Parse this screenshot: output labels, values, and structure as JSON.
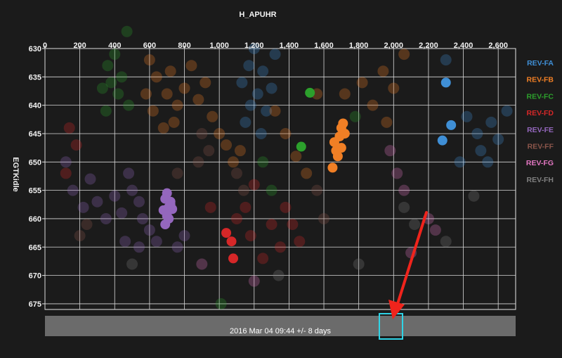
{
  "chart_data": {
    "type": "scatter",
    "x_title": "H_APUHR",
    "y_title": "EGTKidle",
    "x_ticks": [
      "0",
      "200",
      "400",
      "600",
      "800",
      "1,000",
      "1,200",
      "1,400",
      "1,600",
      "1,800",
      "2,000",
      "2,200",
      "2,400",
      "2,600"
    ],
    "y_ticks": [
      "630",
      "635",
      "640",
      "645",
      "650",
      "655",
      "660",
      "665",
      "670",
      "675"
    ],
    "xlim": [
      0,
      2700
    ],
    "ylim": [
      630,
      676
    ],
    "y_inverted": true,
    "grid": true,
    "legend_position": "right",
    "series": [
      {
        "name": "REV-FA",
        "color": "#3f8fd6",
        "highlighted": [
          [
            2300,
            636.0
          ],
          [
            2330,
            643.5
          ],
          [
            2280,
            646.2
          ]
        ],
        "background": [
          [
            1130,
            636
          ],
          [
            1170,
            633
          ],
          [
            1200,
            630
          ],
          [
            1220,
            638
          ],
          [
            1250,
            634
          ],
          [
            1270,
            641
          ],
          [
            1150,
            643
          ],
          [
            1300,
            637
          ],
          [
            1320,
            631
          ],
          [
            1240,
            645
          ],
          [
            1180,
            640
          ],
          [
            2420,
            642
          ],
          [
            2480,
            645
          ],
          [
            2500,
            648
          ],
          [
            2560,
            643
          ],
          [
            2600,
            646
          ],
          [
            2650,
            641
          ],
          [
            2380,
            650
          ],
          [
            2540,
            650
          ],
          [
            2300,
            632
          ]
        ]
      },
      {
        "name": "REV-FB",
        "color": "#f07f25",
        "highlighted": [
          [
            1710,
            643.2
          ],
          [
            1700,
            644.0
          ],
          [
            1690,
            645.5
          ],
          [
            1720,
            645.0
          ],
          [
            1660,
            646.5
          ],
          [
            1700,
            647.5
          ],
          [
            1670,
            648.0
          ],
          [
            1680,
            649.0
          ],
          [
            1650,
            651.0
          ]
        ],
        "background": [
          [
            600,
            632
          ],
          [
            640,
            635
          ],
          [
            700,
            638
          ],
          [
            720,
            634
          ],
          [
            760,
            640
          ],
          [
            800,
            637
          ],
          [
            840,
            633
          ],
          [
            880,
            639
          ],
          [
            920,
            636
          ],
          [
            960,
            642
          ],
          [
            620,
            641
          ],
          [
            680,
            644
          ],
          [
            740,
            643
          ],
          [
            580,
            638
          ],
          [
            1000,
            645
          ],
          [
            1040,
            647
          ],
          [
            1080,
            650
          ],
          [
            1120,
            648
          ],
          [
            1320,
            641
          ],
          [
            1380,
            645
          ],
          [
            1440,
            649
          ],
          [
            1500,
            652
          ],
          [
            1560,
            638
          ],
          [
            1820,
            636
          ],
          [
            1880,
            640
          ],
          [
            1940,
            634
          ],
          [
            2000,
            637
          ],
          [
            2060,
            631
          ],
          [
            1960,
            643
          ],
          [
            1720,
            638
          ]
        ]
      },
      {
        "name": "REV-FC",
        "color": "#2ca02c",
        "highlighted": [
          [
            1520,
            637.8
          ],
          [
            1470,
            647.3
          ]
        ],
        "background": [
          [
            360,
            633
          ],
          [
            380,
            636
          ],
          [
            400,
            631
          ],
          [
            420,
            638
          ],
          [
            350,
            641
          ],
          [
            440,
            635
          ],
          [
            470,
            627
          ],
          [
            480,
            640
          ],
          [
            330,
            637
          ],
          [
            1780,
            642
          ],
          [
            1250,
            650
          ],
          [
            1300,
            655
          ],
          [
            1010,
            675
          ]
        ]
      },
      {
        "name": "REV-FD",
        "color": "#d62728",
        "highlighted": [
          [
            1040,
            662.5
          ],
          [
            1070,
            664.0
          ],
          [
            1080,
            667.0
          ]
        ],
        "background": [
          [
            1100,
            660
          ],
          [
            1150,
            658
          ],
          [
            1180,
            663
          ],
          [
            1250,
            667
          ],
          [
            1300,
            661
          ],
          [
            1380,
            658
          ],
          [
            1420,
            661
          ],
          [
            1460,
            664
          ],
          [
            1350,
            665
          ],
          [
            950,
            658
          ],
          [
            180,
            647
          ],
          [
            140,
            644
          ],
          [
            120,
            652
          ],
          [
            1200,
            654
          ]
        ]
      },
      {
        "name": "REV-FE",
        "color": "#9467bd",
        "highlighted": [
          [
            700,
            655.5
          ],
          [
            690,
            656.5
          ],
          [
            720,
            657.0
          ],
          [
            710,
            658.0
          ],
          [
            730,
            658.3
          ],
          [
            680,
            658.5
          ],
          [
            700,
            659.5
          ],
          [
            710,
            660.0
          ],
          [
            690,
            661.0
          ],
          [
            720,
            657.5
          ]
        ],
        "background": [
          [
            500,
            655
          ],
          [
            540,
            657
          ],
          [
            480,
            652
          ],
          [
            440,
            659
          ],
          [
            400,
            656
          ],
          [
            350,
            660
          ],
          [
            300,
            657
          ],
          [
            260,
            653
          ],
          [
            560,
            660
          ],
          [
            600,
            662
          ],
          [
            640,
            664
          ],
          [
            460,
            664
          ],
          [
            760,
            665
          ],
          [
            800,
            663
          ],
          [
            220,
            658
          ],
          [
            160,
            655
          ],
          [
            120,
            650
          ],
          [
            540,
            665
          ]
        ]
      },
      {
        "name": "REV-FF",
        "color": "#8c564b",
        "highlighted": [],
        "background": [
          [
            900,
            645
          ],
          [
            940,
            648
          ],
          [
            880,
            650
          ],
          [
            1100,
            652
          ],
          [
            1140,
            655
          ],
          [
            760,
            652
          ],
          [
            1560,
            655
          ],
          [
            1600,
            660
          ],
          [
            240,
            661
          ],
          [
            200,
            663
          ]
        ]
      },
      {
        "name": "REV-FG",
        "color": "#e377c2",
        "highlighted": [],
        "background": [
          [
            1980,
            648
          ],
          [
            2020,
            652
          ],
          [
            2060,
            655
          ],
          [
            2200,
            660
          ],
          [
            2240,
            662
          ],
          [
            900,
            668
          ],
          [
            1200,
            671
          ],
          [
            2100,
            666
          ]
        ]
      },
      {
        "name": "REV-FH",
        "color": "#7f7f7f",
        "highlighted": [],
        "background": [
          [
            2060,
            658
          ],
          [
            2120,
            661
          ],
          [
            1340,
            670
          ],
          [
            500,
            668
          ],
          [
            2300,
            664
          ],
          [
            2460,
            656
          ],
          [
            1800,
            668
          ]
        ]
      }
    ],
    "timeline_label": "2016 Mar 04 09:44 +/- 8 days"
  }
}
